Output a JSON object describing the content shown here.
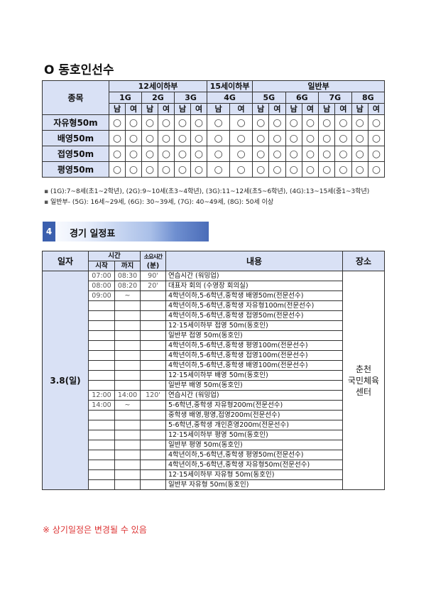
{
  "section_title": "O 동호인선수",
  "entry_table": {
    "event_header": "종목",
    "divisions": [
      "12세이하부",
      "15세이하부",
      "일반부"
    ],
    "groups": [
      "1G",
      "2G",
      "3G",
      "4G",
      "5G",
      "6G",
      "7G",
      "8G"
    ],
    "male": "남",
    "female": "여",
    "rows": [
      {
        "event": "자유형50m",
        "mark": "○"
      },
      {
        "event": "배영50m",
        "mark": "○"
      },
      {
        "event": "접영50m",
        "mark": "○"
      },
      {
        "event": "평영50m",
        "mark": "○"
      }
    ]
  },
  "notes": [
    "(1G):7~8세(초1~2학년), (2G):9~10세(초3~4학년), (3G):11~12세(초5~6학년), (4G):13~15세(중1~3학년)",
    "일반부- (5G): 16세~29세, (6G): 30~39세, (7G): 40~49세, (8G): 50세 이상"
  ],
  "section4": {
    "number": "4",
    "title": "경기 일정표"
  },
  "schedule": {
    "headers": {
      "date": "일자",
      "time": "시간",
      "start": "시작",
      "end": "까지",
      "duration": "소요시간",
      "duration_unit": "(분)",
      "content": "내용",
      "place": "장소"
    },
    "date": "3.8(일)",
    "place_lines": [
      "춘천",
      "국민체육",
      "센터"
    ],
    "rows": [
      {
        "start": "07:00",
        "end": "08:30",
        "dur": "90'",
        "content": "연습시간 (워밍업)"
      },
      {
        "start": "08:00",
        "end": "08:20",
        "dur": "20'",
        "content": "대표자 회의 (수영장 회의실)"
      },
      {
        "start": "09:00",
        "end": "~",
        "dur": "",
        "content": "4학년이하,5-6학년,중학생 배영50m(전문선수)"
      },
      {
        "start": "",
        "end": "",
        "dur": "",
        "content": "4학년이하,5-6학년,중학생 자유형100m(전문선수)"
      },
      {
        "start": "",
        "end": "",
        "dur": "",
        "content": "4학년이하,5-6학년,중학생 접영50m(전문선수)"
      },
      {
        "start": "",
        "end": "",
        "dur": "",
        "content": "12·15세이하부 접영 50m(동호인)"
      },
      {
        "start": "",
        "end": "",
        "dur": "",
        "content": "일반부 접영 50m(동호인)"
      },
      {
        "start": "",
        "end": "",
        "dur": "",
        "content": "4학년이하,5-6학년,중학생 평영100m(전문선수)"
      },
      {
        "start": "",
        "end": "",
        "dur": "",
        "content": "4학년이하,5-6학년,중학생 접영100m(전문선수)"
      },
      {
        "start": "",
        "end": "",
        "dur": "",
        "content": "4학년이하,5-6학년,중학생 배영100m(전문선수)"
      },
      {
        "start": "",
        "end": "",
        "dur": "",
        "content": "12·15세이하부 배영 50m(동호인)"
      },
      {
        "start": "",
        "end": "",
        "dur": "",
        "content": "일반부 배영 50m(동호인)"
      },
      {
        "start": "12:00",
        "end": "14:00",
        "dur": "120'",
        "content": "연습시간 (워밍업)"
      },
      {
        "start": "14:00",
        "end": "~",
        "dur": "",
        "content": "5-6학년,중학생 자유형200m(전문선수)"
      },
      {
        "start": "",
        "end": "",
        "dur": "",
        "content": "중학생 배영,평영,접영200m(전문선수)"
      },
      {
        "start": "",
        "end": "",
        "dur": "",
        "content": "5-6학년,중학생 개인혼영200m(전문선수)"
      },
      {
        "start": "",
        "end": "",
        "dur": "",
        "content": "12·15세이하부 평영 50m(동호인)"
      },
      {
        "start": "",
        "end": "",
        "dur": "",
        "content": "일반부 평영 50m(동호인)"
      },
      {
        "start": "",
        "end": "",
        "dur": "",
        "content": "4학년이하,5-6학년,중학생 평영50m(전문선수)"
      },
      {
        "start": "",
        "end": "",
        "dur": "",
        "content": "4학년이하,5-6학년,중학생 자유형50m(전문선수)"
      },
      {
        "start": "",
        "end": "",
        "dur": "",
        "content": "12·15세이하부 자유형 50m(동호인)"
      },
      {
        "start": "",
        "end": "",
        "dur": "",
        "content": "일반부 자유형 50m(동호인)"
      }
    ]
  },
  "footnote": "※ 상기일정은 변경될 수 있음",
  "colors": {
    "header_bg": "#d9e1f5",
    "section_blue": "#3b5fae",
    "footnote": "#dd3333"
  }
}
